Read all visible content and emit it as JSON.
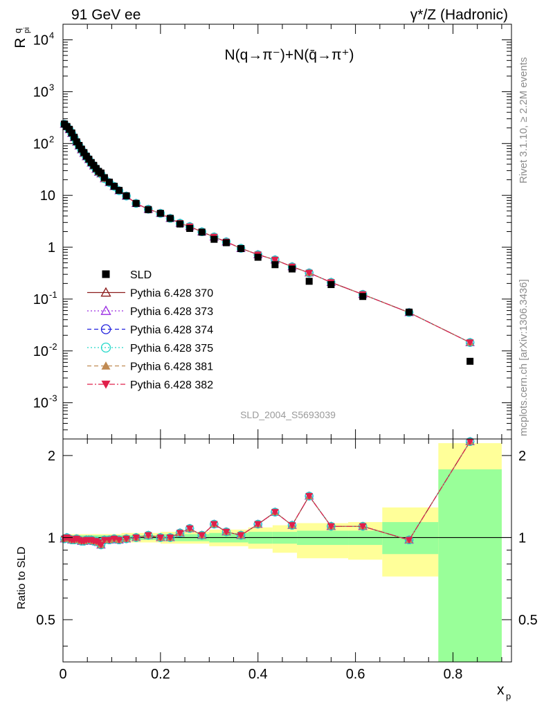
{
  "header": {
    "left_title": "91 GeV ee",
    "right_title": "γ*/Z (Hadronic)"
  },
  "side_labels": {
    "rivet": "Rivet 3.1.10, ≥ 2.2M events",
    "source": "mcplots.cern.ch [arXiv:1306.3436]"
  },
  "watermark": "SLD_2004_S5693039",
  "colors": {
    "band_inner": "#99ff99",
    "band_outer": "#ffff99",
    "data": "#000000",
    "p370": "#8b1a1a",
    "p373": "#9a2be2",
    "p374": "#2020dd",
    "p375": "#20d8c8",
    "p381": "#c08a52",
    "p382": "#e0204a"
  },
  "chart_data": [
    {
      "type": "scatter",
      "title": "N(q→π⁻)+N(q̄→π⁺)",
      "ylabel": "R",
      "ylabel_sup": "q",
      "ylabel_sub": "pi",
      "xlabel": "x",
      "xlabel_sub": "p",
      "log_y": true,
      "xlim": [
        0,
        0.92
      ],
      "ylim": [
        0.0002,
        20000
      ],
      "x_ticks": [
        "0",
        "0.2",
        "0.4",
        "0.6",
        "0.8"
      ],
      "y_ticks": [
        "10^-3",
        "10^-2",
        "10^-1",
        "1",
        "10",
        "10^2",
        "10^3",
        "10^4"
      ],
      "legend_position": "left, lower-middle",
      "x": [
        0.003,
        0.008,
        0.013,
        0.018,
        0.023,
        0.028,
        0.033,
        0.038,
        0.043,
        0.048,
        0.053,
        0.058,
        0.063,
        0.068,
        0.073,
        0.078,
        0.085,
        0.095,
        0.105,
        0.115,
        0.13,
        0.15,
        0.175,
        0.2,
        0.22,
        0.24,
        0.26,
        0.285,
        0.31,
        0.335,
        0.365,
        0.4,
        0.435,
        0.47,
        0.505,
        0.55,
        0.615,
        0.71,
        0.835
      ],
      "series": [
        {
          "name": "SLD",
          "values": [
            238,
            213,
            188,
            160,
            132,
            108,
            92,
            78,
            67,
            57,
            50,
            43,
            38,
            33,
            29,
            27,
            22,
            18,
            15,
            12.5,
            9.8,
            7.0,
            5.3,
            4.5,
            3.6,
            2.8,
            2.3,
            1.95,
            1.42,
            1.22,
            0.94,
            0.64,
            0.46,
            0.38,
            0.22,
            0.19,
            0.112,
            0.056,
            0.0063
          ]
        },
        {
          "name": "Pythia 6.428 370",
          "values": [
            236,
            212,
            186,
            157,
            130,
            107,
            90,
            76,
            65,
            56,
            49,
            42,
            37,
            32,
            28,
            26,
            21,
            17.7,
            14.9,
            12.3,
            9.7,
            7.0,
            5.4,
            4.5,
            3.6,
            2.9,
            2.5,
            1.98,
            1.58,
            1.27,
            0.95,
            0.72,
            0.57,
            0.42,
            0.32,
            0.21,
            0.123,
            0.055,
            0.0145
          ]
        },
        {
          "name": "Pythia 6.428 373",
          "values": [
            236,
            212,
            186,
            157,
            130,
            107,
            90,
            76,
            65,
            56,
            49,
            42,
            37,
            32,
            28,
            26,
            21,
            17.7,
            14.9,
            12.3,
            9.7,
            7.0,
            5.4,
            4.5,
            3.6,
            2.9,
            2.5,
            1.98,
            1.58,
            1.27,
            0.95,
            0.72,
            0.57,
            0.42,
            0.32,
            0.21,
            0.123,
            0.055,
            0.0145
          ]
        },
        {
          "name": "Pythia 6.428 374",
          "values": [
            236,
            212,
            186,
            157,
            130,
            107,
            90,
            76,
            65,
            56,
            49,
            42,
            37,
            32,
            28,
            26,
            21,
            17.7,
            14.9,
            12.3,
            9.7,
            7.0,
            5.4,
            4.5,
            3.6,
            2.9,
            2.5,
            1.98,
            1.58,
            1.27,
            0.95,
            0.72,
            0.57,
            0.42,
            0.32,
            0.21,
            0.123,
            0.055,
            0.0145
          ]
        },
        {
          "name": "Pythia 6.428 375",
          "values": [
            236,
            212,
            186,
            157,
            130,
            107,
            90,
            76,
            65,
            56,
            49,
            42,
            37,
            32,
            28,
            26,
            21,
            17.7,
            14.9,
            12.3,
            9.7,
            7.0,
            5.4,
            4.5,
            3.6,
            2.9,
            2.5,
            1.98,
            1.58,
            1.27,
            0.95,
            0.72,
            0.57,
            0.42,
            0.32,
            0.21,
            0.123,
            0.055,
            0.0145
          ]
        },
        {
          "name": "Pythia 6.428 381",
          "values": [
            236,
            212,
            186,
            157,
            130,
            107,
            90,
            76,
            65,
            56,
            49,
            42,
            37,
            32,
            28,
            26,
            21,
            17.7,
            14.9,
            12.3,
            9.7,
            7.0,
            5.4,
            4.5,
            3.6,
            2.9,
            2.5,
            1.98,
            1.58,
            1.27,
            0.95,
            0.72,
            0.57,
            0.42,
            0.32,
            0.21,
            0.123,
            0.055,
            0.0145
          ]
        },
        {
          "name": "Pythia 6.428 382",
          "values": [
            236,
            212,
            186,
            157,
            130,
            107,
            90,
            76,
            65,
            56,
            49,
            42,
            37,
            32,
            28,
            26,
            21,
            17.7,
            14.9,
            12.3,
            9.7,
            7.0,
            5.4,
            4.5,
            3.6,
            2.9,
            2.5,
            1.98,
            1.58,
            1.27,
            0.95,
            0.72,
            0.57,
            0.42,
            0.32,
            0.21,
            0.123,
            0.055,
            0.0145
          ]
        }
      ]
    },
    {
      "type": "line",
      "ylabel": "Ratio to SLD",
      "xlabel": "x",
      "xlabel_sub": "p",
      "xlim": [
        0,
        0.92
      ],
      "ylim": [
        0.35,
        2.3
      ],
      "y_ticks": [
        "0.5",
        "1",
        "2"
      ],
      "x": [
        0.003,
        0.008,
        0.013,
        0.018,
        0.023,
        0.028,
        0.033,
        0.038,
        0.043,
        0.048,
        0.053,
        0.058,
        0.063,
        0.068,
        0.073,
        0.078,
        0.085,
        0.095,
        0.105,
        0.115,
        0.13,
        0.15,
        0.175,
        0.2,
        0.22,
        0.24,
        0.26,
        0.285,
        0.31,
        0.335,
        0.365,
        0.4,
        0.435,
        0.47,
        0.505,
        0.55,
        0.615,
        0.71,
        0.835
      ],
      "ratio": [
        0.99,
        1.0,
        0.99,
        0.98,
        0.98,
        0.99,
        0.98,
        0.97,
        0.97,
        0.98,
        0.98,
        0.98,
        0.97,
        0.97,
        0.96,
        0.94,
        0.98,
        0.98,
        0.99,
        0.98,
        0.99,
        1.0,
        1.02,
        1.0,
        1.0,
        1.04,
        1.08,
        1.02,
        1.12,
        1.05,
        1.02,
        1.12,
        1.24,
        1.11,
        1.42,
        1.1,
        1.1,
        0.98,
        2.25
      ],
      "bands": [
        {
          "x0": 0.0,
          "x1": 0.12,
          "inner": [
            0.98,
            1.02
          ],
          "outer": [
            0.97,
            1.03
          ]
        },
        {
          "x0": 0.12,
          "x1": 0.2,
          "inner": [
            0.98,
            1.02
          ],
          "outer": [
            0.96,
            1.04
          ]
        },
        {
          "x0": 0.2,
          "x1": 0.3,
          "inner": [
            0.97,
            1.03
          ],
          "outer": [
            0.95,
            1.05
          ]
        },
        {
          "x0": 0.3,
          "x1": 0.38,
          "inner": [
            0.96,
            1.04
          ],
          "outer": [
            0.93,
            1.07
          ]
        },
        {
          "x0": 0.38,
          "x1": 0.43,
          "inner": [
            0.95,
            1.05
          ],
          "outer": [
            0.91,
            1.09
          ]
        },
        {
          "x0": 0.43,
          "x1": 0.48,
          "inner": [
            0.95,
            1.05
          ],
          "outer": [
            0.88,
            1.11
          ]
        },
        {
          "x0": 0.48,
          "x1": 0.585,
          "inner": [
            0.94,
            1.06
          ],
          "outer": [
            0.84,
            1.13
          ]
        },
        {
          "x0": 0.585,
          "x1": 0.655,
          "inner": [
            0.94,
            1.06
          ],
          "outer": [
            0.83,
            1.14
          ]
        },
        {
          "x0": 0.655,
          "x1": 0.77,
          "inner": [
            0.87,
            1.14
          ],
          "outer": [
            0.72,
            1.29
          ]
        },
        {
          "x0": 0.77,
          "x1": 0.9,
          "inner": [
            0.35,
            1.78
          ],
          "outer": [
            0.35,
            2.22
          ]
        }
      ]
    }
  ]
}
